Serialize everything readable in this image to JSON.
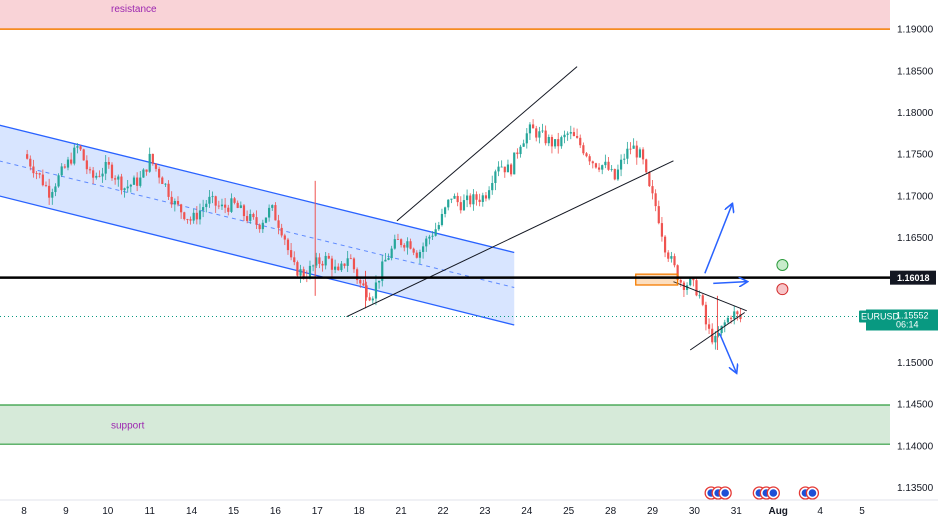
{
  "chart_data": {
    "type": "candlestick",
    "symbol": "EURUSD",
    "x_tick_labels": [
      "8",
      "9",
      "10",
      "11",
      "14",
      "15",
      "16",
      "17",
      "18",
      "21",
      "22",
      "23",
      "24",
      "25",
      "28",
      "29",
      "30",
      "31",
      "Aug",
      "4",
      "5"
    ],
    "y_tick_labels": [
      "1.19000",
      "1.18500",
      "1.18000",
      "1.17500",
      "1.17000",
      "1.16500",
      "1.15000",
      "1.14500",
      "1.14000",
      "1.13500"
    ],
    "ylim": [
      1.1335,
      1.1935
    ],
    "horizontal_level": {
      "value": 1.16018,
      "label": "1.16018"
    },
    "current_price": {
      "value": 1.15552,
      "label": "1.15552",
      "symbol_label": "EURUSD",
      "countdown": "06:14"
    },
    "zones": [
      {
        "name": "resistance",
        "label": "resistance",
        "from": 1.19,
        "to": 1.1935,
        "fill": "#f9d3d7",
        "edge": "#f57c00"
      },
      {
        "name": "support",
        "label": "support",
        "from": 1.1402,
        "to": 1.1449,
        "fill": "#d6ead9",
        "edge": "#2e9c3e"
      }
    ],
    "price_path": [
      [
        0,
        1.175
      ],
      [
        0.35,
        1.1725
      ],
      [
        0.6,
        1.1705
      ],
      [
        1,
        1.1735
      ],
      [
        1.3,
        1.176
      ],
      [
        1.6,
        1.172
      ],
      [
        2,
        1.1735
      ],
      [
        2.4,
        1.171
      ],
      [
        2.8,
        1.172
      ],
      [
        3,
        1.1745
      ],
      [
        3.3,
        1.172
      ],
      [
        3.6,
        1.169
      ],
      [
        4,
        1.167
      ],
      [
        4.4,
        1.1695
      ],
      [
        4.7,
        1.1685
      ],
      [
        5,
        1.169
      ],
      [
        5.3,
        1.1675
      ],
      [
        5.6,
        1.1665
      ],
      [
        5.9,
        1.1685
      ],
      [
        6.2,
        1.1655
      ],
      [
        6.4,
        1.1615
      ],
      [
        6.7,
        1.1605
      ],
      [
        7,
        1.162
      ],
      [
        7.25,
        1.1625
      ],
      [
        7.5,
        1.1605
      ],
      [
        7.75,
        1.163
      ],
      [
        8,
        1.1595
      ],
      [
        8.3,
        1.158
      ],
      [
        8.6,
        1.162
      ],
      [
        8.9,
        1.1645
      ],
      [
        9.2,
        1.1645
      ],
      [
        9.4,
        1.163
      ],
      [
        9.65,
        1.165
      ],
      [
        9.9,
        1.1665
      ],
      [
        10.2,
        1.17
      ],
      [
        10.4,
        1.169
      ],
      [
        10.7,
        1.1695
      ],
      [
        11,
        1.17
      ],
      [
        11.3,
        1.174
      ],
      [
        11.6,
        1.173
      ],
      [
        11.85,
        1.1765
      ],
      [
        12.1,
        1.178
      ],
      [
        12.4,
        1.177
      ],
      [
        12.7,
        1.176
      ],
      [
        13,
        1.1775
      ],
      [
        13.3,
        1.176
      ],
      [
        13.6,
        1.174
      ],
      [
        13.9,
        1.1735
      ],
      [
        14.1,
        1.172
      ],
      [
        14.3,
        1.1745
      ],
      [
        14.5,
        1.176
      ],
      [
        14.75,
        1.1745
      ],
      [
        14.9,
        1.171
      ],
      [
        15.1,
        1.1685
      ],
      [
        15.3,
        1.164
      ],
      [
        15.5,
        1.1615
      ],
      [
        15.7,
        1.1595
      ],
      [
        15.9,
        1.1595
      ],
      [
        16.1,
        1.1585
      ],
      [
        16.3,
        1.154
      ],
      [
        16.5,
        1.1525
      ],
      [
        16.7,
        1.1545
      ],
      [
        16.9,
        1.156
      ],
      [
        17.1,
        1.1552
      ]
    ],
    "wick_spikes": [
      {
        "x": 6.95,
        "high": 1.1718,
        "low": 1.158
      },
      {
        "x": 8.15,
        "high": 1.161,
        "low": 1.1565
      },
      {
        "x": 16.55,
        "high": 1.158,
        "low": 1.1515
      }
    ],
    "channel": {
      "upper": [
        [
          -0.6,
          1.1785
        ],
        [
          11.7,
          1.1632
        ]
      ],
      "lower": [
        [
          -0.6,
          1.17
        ],
        [
          11.7,
          1.1545
        ]
      ],
      "mid": [
        [
          -0.6,
          1.1742
        ],
        [
          11.7,
          1.159
        ]
      ],
      "fill": "#a9c6ff"
    },
    "trend_lines": [
      {
        "name": "rising-upper",
        "from": [
          8.9,
          1.167
        ],
        "to": [
          13.2,
          1.1855
        ]
      },
      {
        "name": "rising-lower",
        "from": [
          7.7,
          1.1555
        ],
        "to": [
          15.5,
          1.1742
        ]
      },
      {
        "name": "triangle-upper",
        "from": [
          15.5,
          1.1597
        ],
        "to": [
          17.25,
          1.1562
        ]
      },
      {
        "name": "triangle-lower",
        "from": [
          15.9,
          1.1515
        ],
        "to": [
          17.2,
          1.156
        ]
      }
    ],
    "consolidation_box": {
      "x0": 14.6,
      "x1": 15.6,
      "top": 1.1606,
      "bottom": 1.1593,
      "color": "#f57c00"
    },
    "scenario_arrows": [
      {
        "name": "bullish-arrow",
        "from": [
          16.25,
          1.1607
        ],
        "to": [
          16.9,
          1.169
        ]
      },
      {
        "name": "sideways-arrow",
        "from": [
          16.45,
          1.1595
        ],
        "to": [
          17.25,
          1.1597
        ]
      },
      {
        "name": "bearish-arrow",
        "from": [
          16.6,
          1.1535
        ],
        "to": [
          17.0,
          1.1488
        ]
      }
    ],
    "signal_dots": [
      {
        "name": "green-dot",
        "x": 18.1,
        "value": 1.1617,
        "fill": "#c8eccb",
        "stroke": "#2e9c3e"
      },
      {
        "name": "red-dot",
        "x": 18.1,
        "value": 1.1588,
        "fill": "#f7c5c8",
        "stroke": "#d32f2f"
      }
    ],
    "event_markers": [
      {
        "x": 16.4,
        "count": 3
      },
      {
        "x": 17.55,
        "count": 3
      },
      {
        "x": 18.65,
        "count": 2
      }
    ],
    "colors": {
      "up": "#26a69a",
      "down": "#ef5350",
      "channel_line": "#2962ff",
      "trend_line": "#131722",
      "level_line": "#000000",
      "price_badge": "#089981",
      "level_badge": "#131722",
      "scenario_arrow": "#2962ff"
    }
  }
}
